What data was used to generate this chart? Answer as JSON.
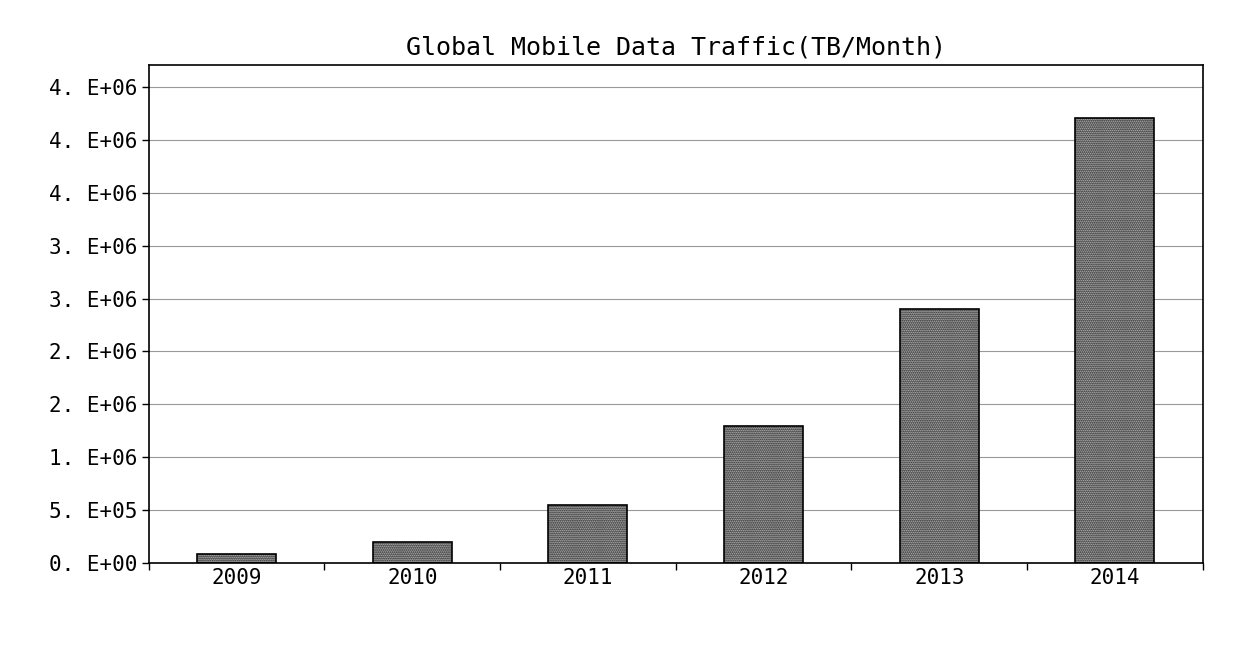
{
  "categories": [
    "2009",
    "2010",
    "2011",
    "2012",
    "2013",
    "2014"
  ],
  "values": [
    90000,
    200000,
    550000,
    1300000,
    2400000,
    4200000
  ],
  "title": "Global Mobile Data Traffic(TB/Month)",
  "ylim": [
    0,
    4700000
  ],
  "ytick_positions": [
    0,
    500000,
    1000000,
    1500000,
    2000000,
    2500000,
    3000000,
    3500000,
    4000000,
    4500000
  ],
  "ytick_labels": [
    "0. E+00",
    "5. E+05",
    "1. E+06",
    "2. E+06",
    "2. E+06",
    "3. E+06",
    "3. E+06",
    "4. E+06",
    "4. E+06",
    "4. E+06"
  ],
  "bar_color": "#d0d0d0",
  "bar_edge_color": "#000000",
  "background_color": "#ffffff",
  "title_fontsize": 18,
  "tick_fontsize": 15,
  "bar_width": 0.45,
  "grid_color": "#999999",
  "grid_linewidth": 0.8
}
